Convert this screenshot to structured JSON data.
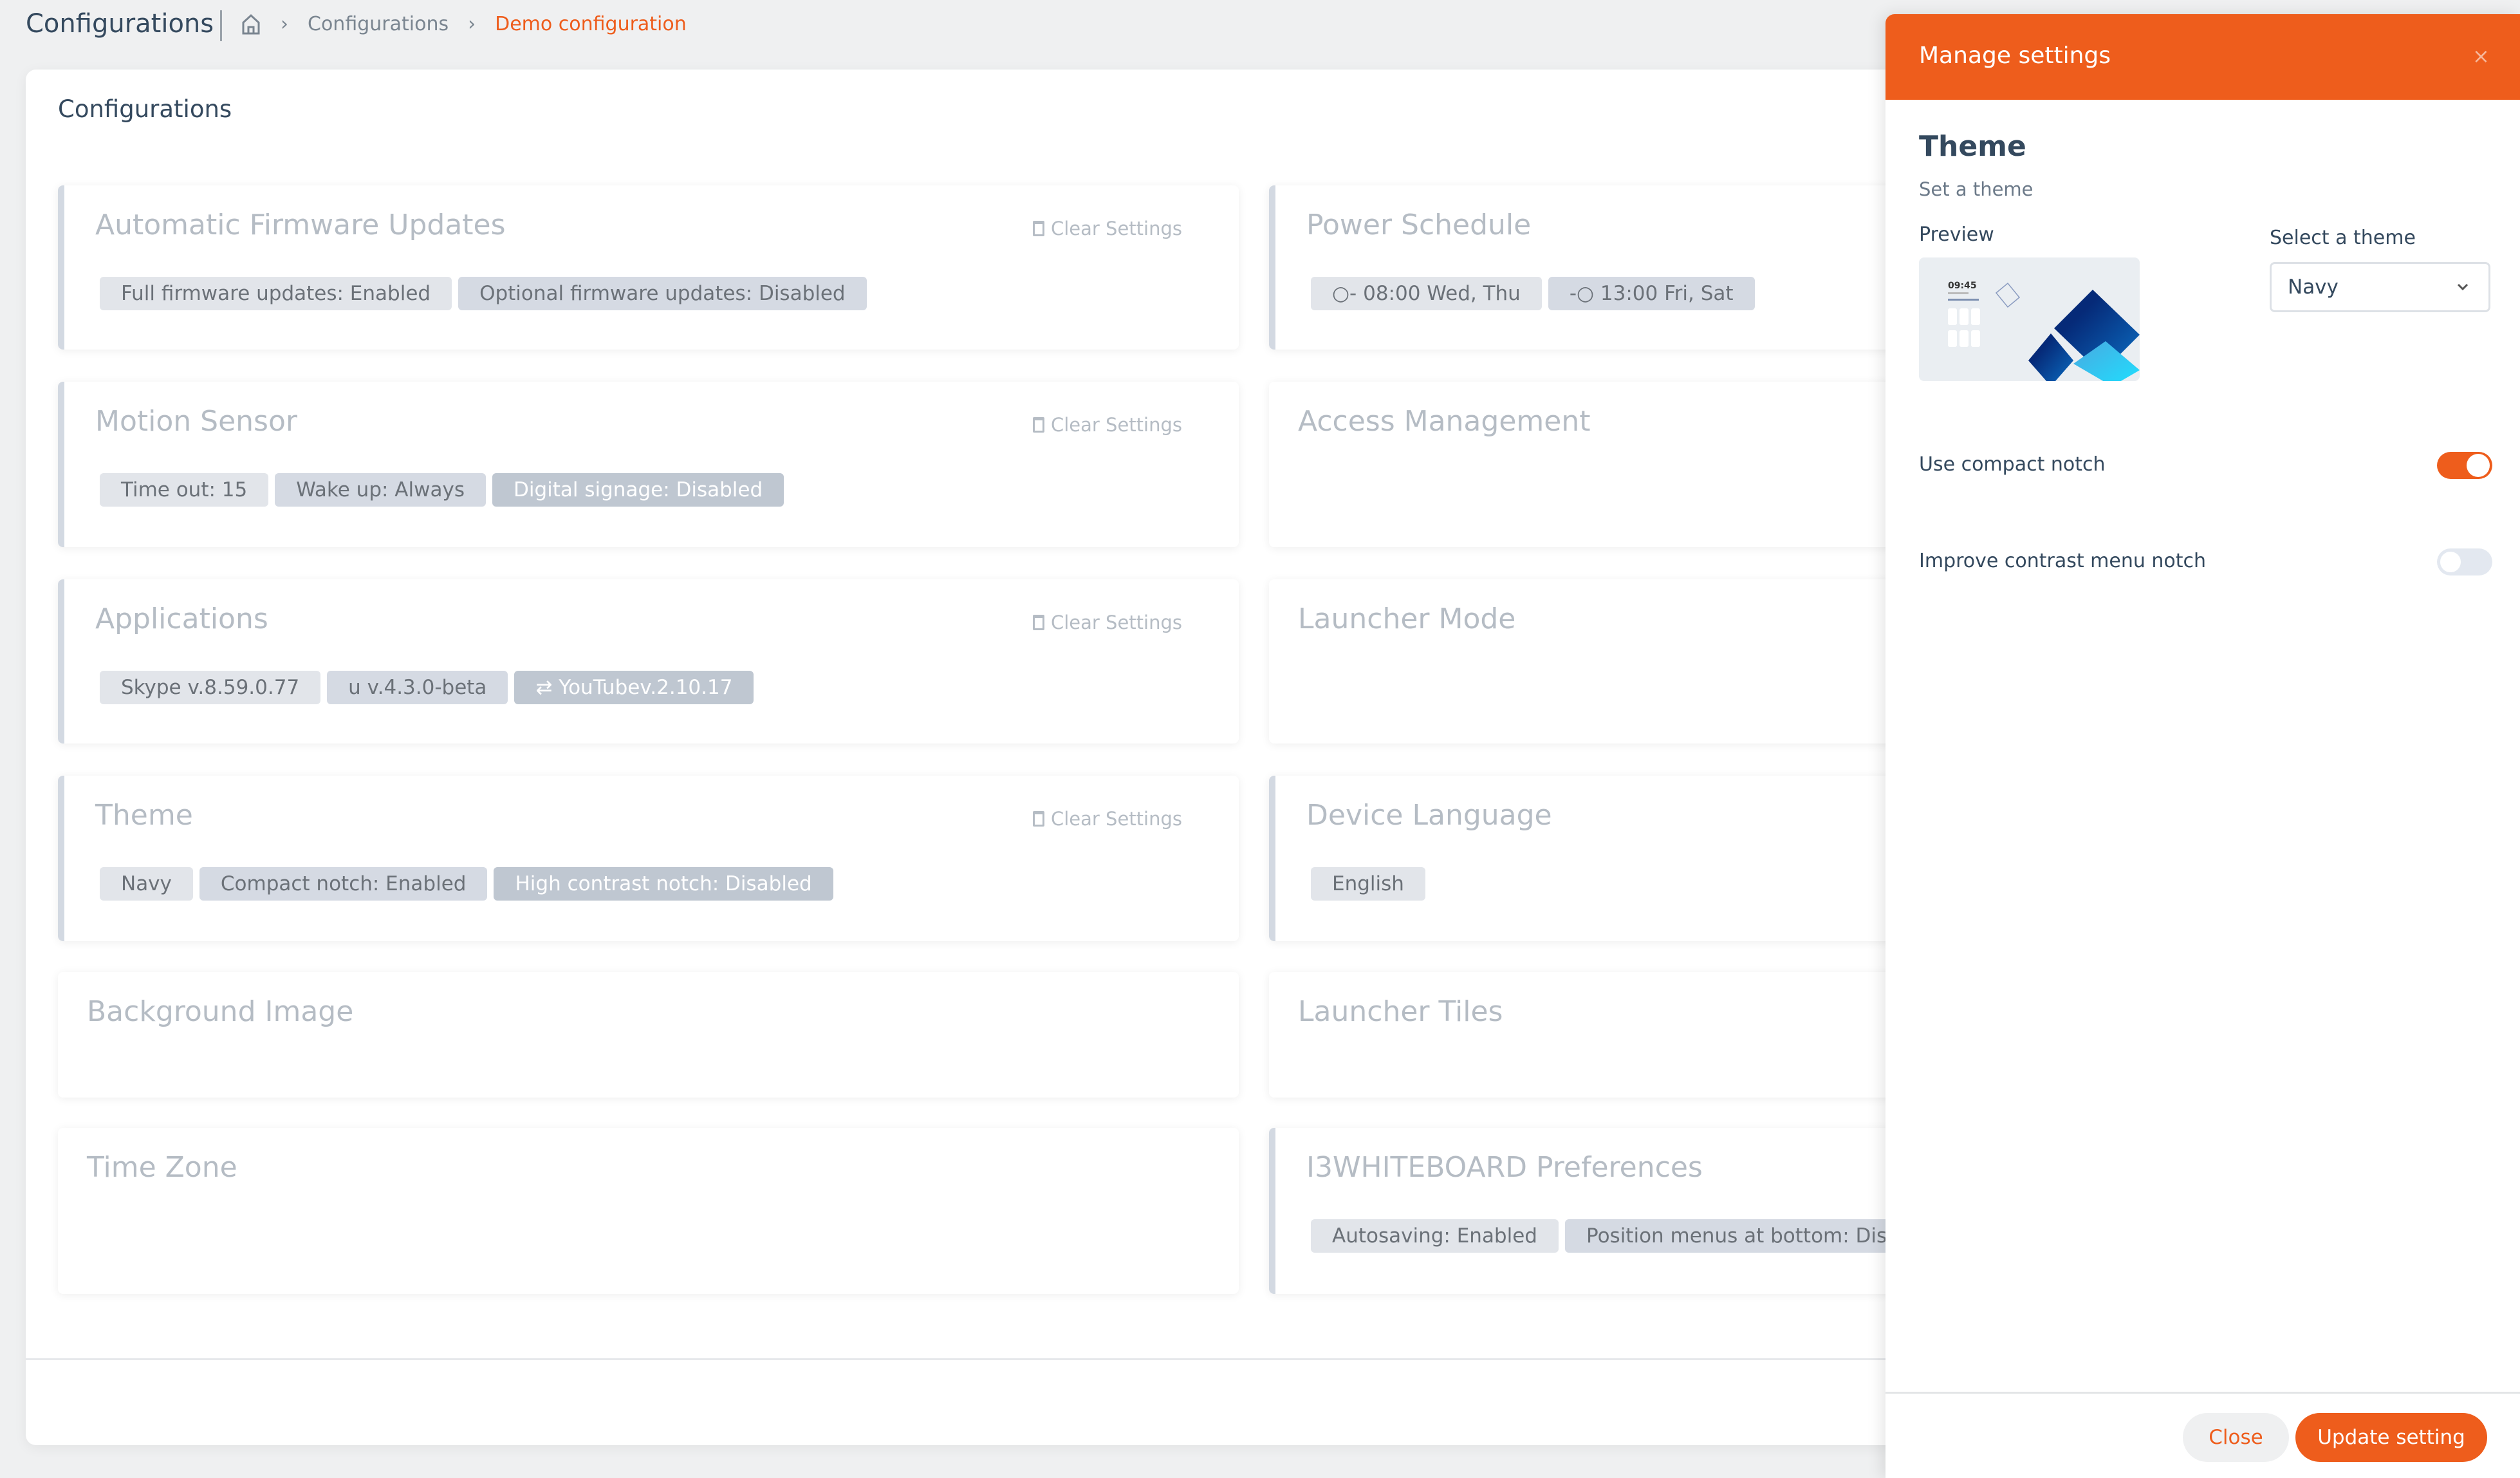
{
  "header": {
    "title": "Configurations",
    "breadcrumb": [
      {
        "icon": "home-icon"
      },
      {
        "label": "Configurations"
      },
      {
        "label": "Demo configuration"
      }
    ],
    "separator": "›"
  },
  "main": {
    "heading": "Configurations",
    "clear_label": "Clear Settings",
    "cards": [
      {
        "title": "Automatic Firmware Updates",
        "clear": true,
        "tags": [
          "Full firmware updates: Enabled",
          "Optional firmware updates: Disabled"
        ]
      },
      {
        "title": "Power Schedule",
        "tags": [
          "○- 08:00 Wed, Thu",
          "-○ 13:00 Fri, Sat"
        ]
      },
      {
        "title": "Motion Sensor",
        "clear": true,
        "tags": [
          "Time out: 15",
          "Wake up: Always",
          "Digital signage: Disabled"
        ]
      },
      {
        "title": "Access Management",
        "tags": []
      },
      {
        "title": "Applications",
        "clear": true,
        "tags": [
          "Skype v.8.59.0.77",
          "u v.4.3.0-beta",
          "⇄ YouTubev.2.10.17"
        ]
      },
      {
        "title": "Launcher Mode",
        "tags": []
      },
      {
        "title": "Theme",
        "clear": true,
        "tags": [
          "Navy",
          "Compact notch: Enabled",
          "High contrast notch: Disabled"
        ]
      },
      {
        "title": "Device Language",
        "tags": [
          "English"
        ]
      },
      {
        "title": "Background Image",
        "tags": []
      },
      {
        "title": "Launcher Tiles",
        "tags": []
      },
      {
        "title": "Time Zone",
        "tags": []
      },
      {
        "title": "I3WHITEBOARD Preferences",
        "tags": [
          "Autosaving: Enabled",
          "Position menus at bottom: Disabled"
        ]
      }
    ]
  },
  "drawer": {
    "title": "Manage settings",
    "close_icon": "×",
    "section_title": "Theme",
    "section_subtitle": "Set a theme",
    "preview_label": "Preview",
    "preview_time": "09:45",
    "select_label": "Select a theme",
    "select_value": "Navy",
    "toggles": [
      {
        "label": "Use compact notch",
        "on": true
      },
      {
        "label": "Improve contrast menu notch",
        "on": false
      }
    ],
    "close_button": "Close",
    "update_button": "Update setting"
  },
  "colors": {
    "accent": "#ee5d1c",
    "tag_border": "#d3d9e2"
  }
}
